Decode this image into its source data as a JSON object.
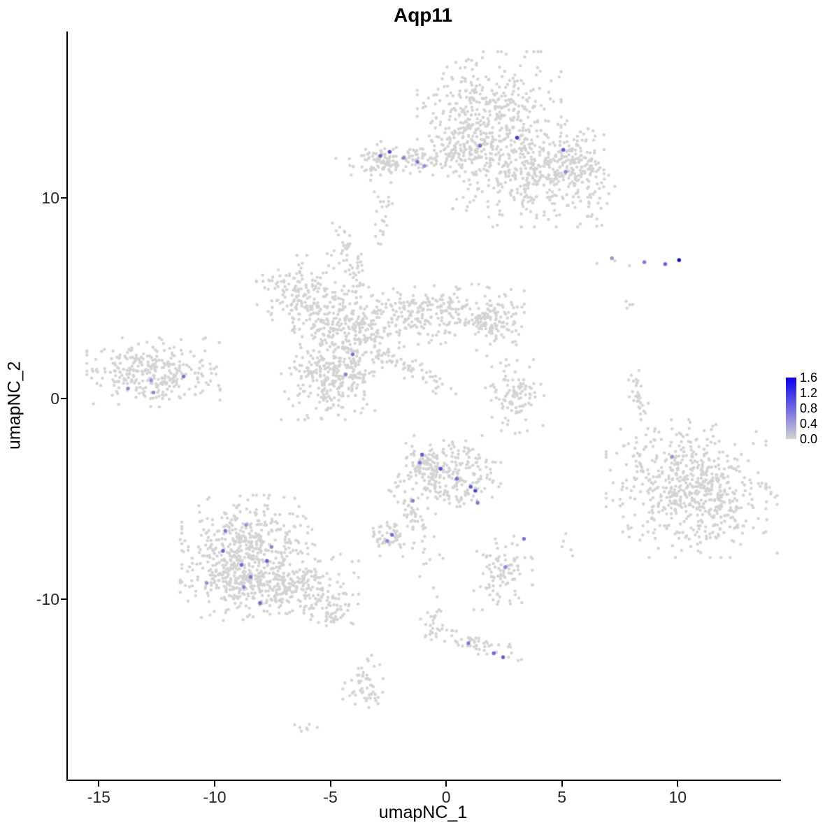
{
  "chart_data": {
    "type": "scatter",
    "title": "Aqp11",
    "xlabel": "umapNC_1",
    "ylabel": "umapNC_2",
    "xlim": [
      -16.4,
      14.4
    ],
    "ylim": [
      -19.0,
      18.3
    ],
    "xticks": [
      -15,
      -10,
      -5,
      0,
      5,
      10
    ],
    "yticks": [
      -10,
      0,
      10
    ],
    "grid": false,
    "background": "#ffffff",
    "legend": {
      "position": "right",
      "max": 1.6,
      "labels": [
        "1.6",
        "1.2",
        "0.8",
        "0.4",
        "0.0"
      ]
    },
    "colors": {
      "low": "#d3d3d3",
      "high": "#0b00f0"
    },
    "point_radius": 2.2,
    "highlight_radius": 2.7,
    "seed": 20240613,
    "clusters": [
      {
        "x": 1.8,
        "y": 14.3,
        "sx": 1.35,
        "sy": 1.3,
        "n": 380
      },
      {
        "x": 0.9,
        "y": 12.7,
        "sx": 0.8,
        "sy": 0.7,
        "n": 120
      },
      {
        "x": 3.9,
        "y": 11.2,
        "sx": 1.3,
        "sy": 1.15,
        "n": 330
      },
      {
        "x": 5.5,
        "y": 11.6,
        "sx": 0.75,
        "sy": 0.9,
        "n": 130
      },
      {
        "x": -1.6,
        "y": 11.9,
        "sx": 1.4,
        "sy": 0.33,
        "n": 130
      },
      {
        "x": -2.8,
        "y": 11.8,
        "sx": 0.35,
        "sy": 0.45,
        "n": 40
      },
      {
        "x": -2.8,
        "y": 9.6,
        "sx": 0.25,
        "sy": 0.4,
        "n": 14
      },
      {
        "x": -4.5,
        "y": 7.6,
        "sx": 0.3,
        "sy": 0.5,
        "n": 22
      },
      {
        "x": -6.3,
        "y": 5.3,
        "sx": 0.85,
        "sy": 0.8,
        "n": 160
      },
      {
        "x": -4.3,
        "y": 3.3,
        "sx": 1.05,
        "sy": 1.0,
        "n": 300
      },
      {
        "x": -5.0,
        "y": 0.9,
        "sx": 0.95,
        "sy": 0.85,
        "n": 240
      },
      {
        "x": -0.6,
        "y": 4.2,
        "sx": 1.7,
        "sy": 0.65,
        "n": 260
      },
      {
        "x": 2.0,
        "y": 3.9,
        "sx": 0.6,
        "sy": 0.55,
        "n": 90
      },
      {
        "x": -1.7,
        "y": 1.5,
        "sx": 1.1,
        "sy": 0.22,
        "n": 55,
        "rot": -30
      },
      {
        "x": -3.9,
        "y": 6.3,
        "sx": 0.22,
        "sy": 0.5,
        "n": 26
      },
      {
        "x": -12.7,
        "y": 1.3,
        "sx": 1.25,
        "sy": 0.75,
        "n": 300
      },
      {
        "x": 2.9,
        "y": 0.1,
        "sx": 0.55,
        "sy": 0.8,
        "n": 100
      },
      {
        "x": 8.2,
        "y": 0.2,
        "sx": 0.16,
        "sy": 0.6,
        "n": 28,
        "rot": 12
      },
      {
        "x": 7.8,
        "y": 4.8,
        "sx": 0.12,
        "sy": 0.25,
        "n": 4
      },
      {
        "x": 10.3,
        "y": -3.7,
        "sx": 1.5,
        "sy": 1.15,
        "n": 330
      },
      {
        "x": 10.9,
        "y": -5.4,
        "sx": 1.45,
        "sy": 1.1,
        "n": 300
      },
      {
        "x": 0.0,
        "y": -3.8,
        "sx": 1.0,
        "sy": 0.85,
        "n": 240
      },
      {
        "x": -1.0,
        "y": -3.2,
        "sx": 0.35,
        "sy": 0.45,
        "n": 50
      },
      {
        "x": -1.7,
        "y": -5.5,
        "sx": 0.28,
        "sy": 0.75,
        "n": 45,
        "rot": 25
      },
      {
        "x": -2.3,
        "y": -7.0,
        "sx": 0.42,
        "sy": 0.38,
        "n": 55
      },
      {
        "x": -0.8,
        "y": -8.3,
        "sx": 0.35,
        "sy": 1.1,
        "n": 10
      },
      {
        "x": -8.6,
        "y": -7.0,
        "sx": 1.25,
        "sy": 0.95,
        "n": 320
      },
      {
        "x": -8.9,
        "y": -9.0,
        "sx": 1.15,
        "sy": 0.9,
        "n": 300
      },
      {
        "x": -6.6,
        "y": -9.3,
        "sx": 1.2,
        "sy": 0.75,
        "n": 210
      },
      {
        "x": -5.1,
        "y": -10.6,
        "sx": 0.6,
        "sy": 0.45,
        "n": 60
      },
      {
        "x": 2.4,
        "y": -8.7,
        "sx": 0.55,
        "sy": 0.8,
        "n": 95
      },
      {
        "x": 5.0,
        "y": -7.4,
        "sx": 0.18,
        "sy": 0.35,
        "n": 5
      },
      {
        "x": 1.0,
        "y": -12.1,
        "sx": 1.05,
        "sy": 0.22,
        "n": 55,
        "rot": -20
      },
      {
        "x": -0.7,
        "y": -11.3,
        "sx": 0.18,
        "sy": 0.5,
        "n": 18
      },
      {
        "x": -3.6,
        "y": -14.3,
        "sx": 0.4,
        "sy": 0.65,
        "n": 55
      },
      {
        "x": -6.2,
        "y": -16.4,
        "sx": 0.25,
        "sy": 0.12,
        "n": 7
      },
      {
        "x": 6.2,
        "y": 9.3,
        "sx": 0.3,
        "sy": 0.5,
        "n": 10
      },
      {
        "x": 0.9,
        "y": 10.2,
        "sx": 0.5,
        "sy": 0.7,
        "n": 18
      },
      {
        "x": 2.4,
        "y": 2.4,
        "sx": 0.5,
        "sy": 0.9,
        "n": 10
      },
      {
        "x": -2.9,
        "y": 8.2,
        "sx": 0.12,
        "sy": 0.6,
        "n": 8
      },
      {
        "x": 7.6,
        "y": 6.7,
        "sx": 0.5,
        "sy": 0.15,
        "n": 3
      }
    ],
    "highlights": [
      [
        -2.9,
        12.1,
        0.9
      ],
      [
        -2.5,
        12.3,
        1.1
      ],
      [
        -1.9,
        12.0,
        0.6
      ],
      [
        -1.3,
        11.8,
        0.7
      ],
      [
        -1.0,
        11.6,
        0.5
      ],
      [
        1.4,
        12.6,
        0.8
      ],
      [
        3.0,
        13.0,
        1.2
      ],
      [
        5.0,
        12.4,
        0.9
      ],
      [
        5.1,
        11.3,
        0.6
      ],
      [
        7.1,
        7.0,
        0.5
      ],
      [
        8.5,
        6.8,
        0.7
      ],
      [
        9.4,
        6.7,
        0.9
      ],
      [
        10.0,
        6.9,
        1.6
      ],
      [
        9.7,
        -2.9,
        0.5
      ],
      [
        -4.1,
        2.2,
        0.8
      ],
      [
        -4.4,
        1.2,
        0.6
      ],
      [
        -13.8,
        0.5,
        0.6
      ],
      [
        -12.8,
        0.9,
        0.5
      ],
      [
        -12.7,
        0.3,
        0.6
      ],
      [
        -11.4,
        1.1,
        0.7
      ],
      [
        -1.1,
        -2.8,
        0.9
      ],
      [
        -1.2,
        -3.2,
        0.7
      ],
      [
        -0.3,
        -3.5,
        1.0
      ],
      [
        0.4,
        -4.0,
        0.8
      ],
      [
        1.0,
        -4.4,
        0.9
      ],
      [
        1.2,
        -4.6,
        1.1
      ],
      [
        1.3,
        -5.2,
        0.7
      ],
      [
        -1.5,
        -5.1,
        0.6
      ],
      [
        -2.4,
        -6.8,
        0.8
      ],
      [
        -2.6,
        -7.1,
        0.6
      ],
      [
        -9.6,
        -6.6,
        0.7
      ],
      [
        -9.7,
        -7.6,
        0.9
      ],
      [
        -8.7,
        -6.3,
        0.5
      ],
      [
        -8.9,
        -8.3,
        0.8
      ],
      [
        -8.5,
        -8.9,
        0.7
      ],
      [
        -7.8,
        -8.1,
        0.9
      ],
      [
        -8.8,
        -9.4,
        0.6
      ],
      [
        -10.4,
        -9.2,
        0.5
      ],
      [
        -8.1,
        -10.2,
        0.8
      ],
      [
        -7.6,
        -7.4,
        0.6
      ],
      [
        3.3,
        -7.0,
        0.7
      ],
      [
        2.5,
        -8.4,
        0.6
      ],
      [
        0.9,
        -12.2,
        0.7
      ],
      [
        2.0,
        -12.7,
        0.8
      ],
      [
        2.4,
        -12.9,
        0.9
      ]
    ]
  }
}
